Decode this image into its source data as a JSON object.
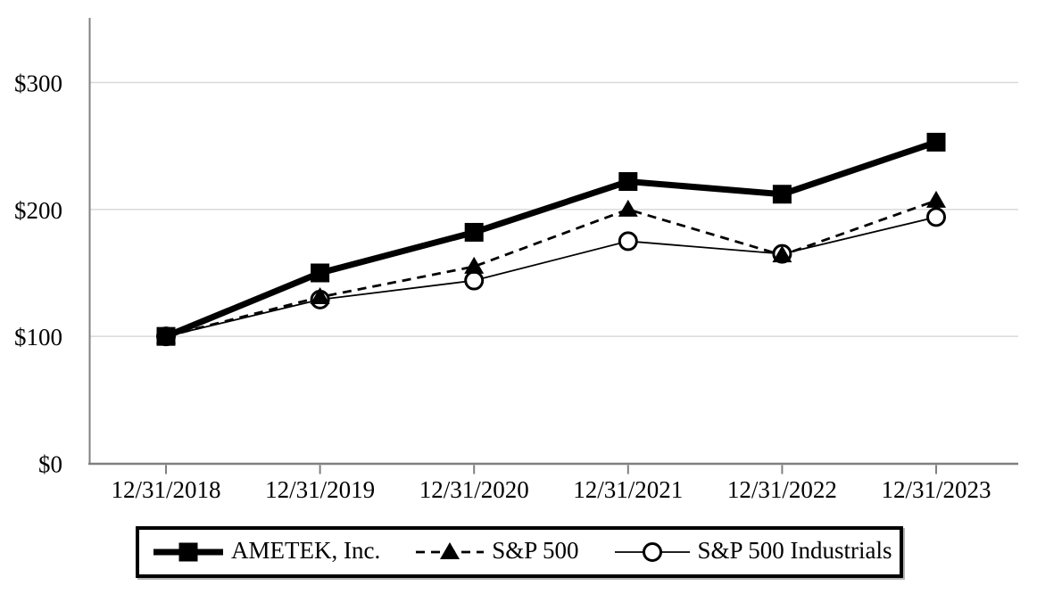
{
  "chart_data": {
    "type": "line",
    "title": "",
    "xlabel": "",
    "ylabel": "",
    "categories": [
      "12/31/2018",
      "12/31/2019",
      "12/31/2020",
      "12/31/2021",
      "12/31/2022",
      "12/31/2023"
    ],
    "y_ticks": [
      {
        "label": "$0",
        "value": 0
      },
      {
        "label": "$100",
        "value": 100
      },
      {
        "label": "$200",
        "value": 200
      },
      {
        "label": "$300",
        "value": 300
      }
    ],
    "ylim": [
      0,
      351
    ],
    "grid": "horizontal-only",
    "legend_position": "bottom",
    "series": [
      {
        "name": "AMETEK, Inc.",
        "marker": "filled-square",
        "line_style": "solid-thick",
        "values": [
          100,
          150,
          182,
          222,
          212,
          253
        ]
      },
      {
        "name": "S&P 500",
        "marker": "filled-triangle",
        "line_style": "dashed",
        "values": [
          100,
          131,
          155,
          200,
          164,
          207
        ]
      },
      {
        "name": "S&P 500 Industrials",
        "marker": "open-circle",
        "line_style": "solid-thin",
        "values": [
          100,
          129,
          144,
          175,
          165,
          194
        ]
      }
    ]
  },
  "colors": {
    "series": "#000000",
    "gridline": "#d9d9d9",
    "axis": "#808080",
    "legend_border": "#000000",
    "background": "#ffffff"
  }
}
